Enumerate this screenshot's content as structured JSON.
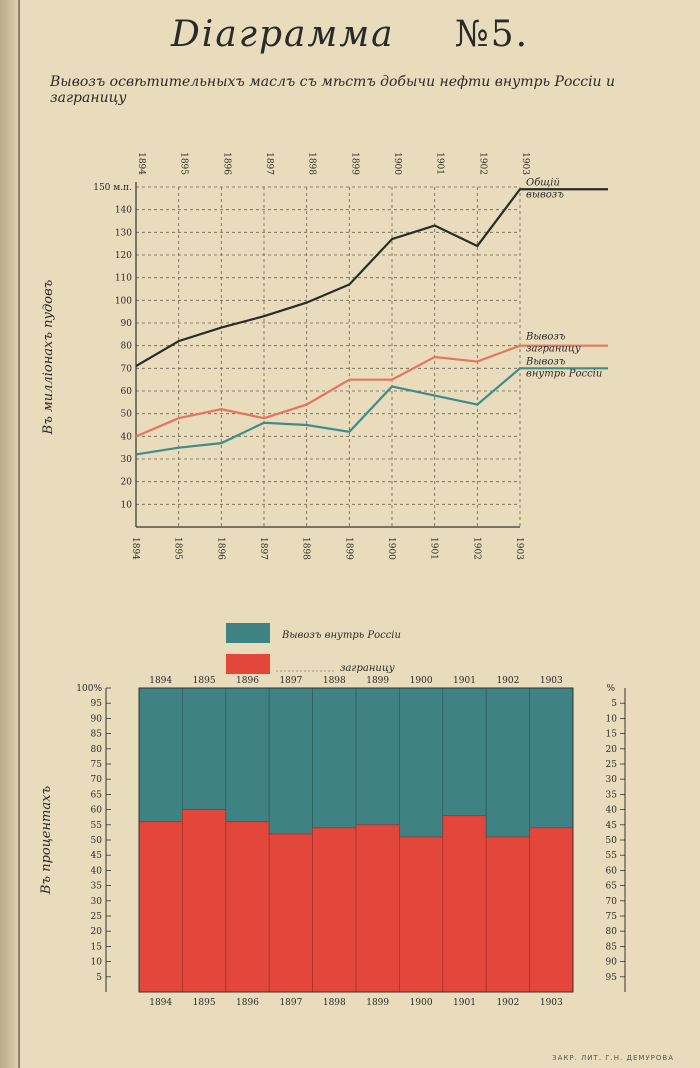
{
  "title": "Diагрaмма",
  "number": "№5.",
  "subtitle": "Вывозъ освѣтительныхъ маслъ съ мѣстъ добычи нефти внутрь Россiи и заграницу",
  "imprint": "ЗАКР. ЛИТ. Г.Н. ДЕМУРОВА",
  "colors": {
    "total": "#2b2b2b",
    "abroad": "#e8735f",
    "domestic": "#3f8c8c",
    "blue_fill": "#3f8284",
    "red_fill": "#e3463a",
    "grid": "#6b6352"
  },
  "chart_data": [
    {
      "type": "line",
      "x": [
        "1894",
        "1895",
        "1896",
        "1897",
        "1898",
        "1899",
        "1900",
        "1901",
        "1902",
        "1903"
      ],
      "ylabel": "Въ миллiонахъ пудовъ",
      "ylim": [
        0,
        150
      ],
      "yticks": [
        "10",
        "20",
        "30",
        "40",
        "50",
        "60",
        "70",
        "80",
        "90",
        "100",
        "110",
        "120",
        "130",
        "140",
        "150 м.п."
      ],
      "grid": true,
      "series": [
        {
          "name": "Общiй вывозъ",
          "label_lines": [
            "Общiй",
            "вывозъ"
          ],
          "values": [
            71,
            82,
            88,
            93,
            99,
            107,
            127,
            133,
            124,
            149
          ]
        },
        {
          "name": "Вывозъ заграницу",
          "label_lines": [
            "Вывозъ",
            "заграницу"
          ],
          "values": [
            40,
            48,
            52,
            48,
            54,
            65,
            65,
            75,
            73,
            80
          ]
        },
        {
          "name": "Вывозъ внутрь Россiи",
          "label_lines": [
            "Вывозъ",
            "внутрь Россiи"
          ],
          "values": [
            32,
            35,
            37,
            46,
            45,
            42,
            62,
            58,
            54,
            70
          ]
        }
      ]
    },
    {
      "type": "bar",
      "stacked": true,
      "percent": true,
      "categories": [
        "1894",
        "1895",
        "1896",
        "1897",
        "1898",
        "1899",
        "1900",
        "1901",
        "1902",
        "1903"
      ],
      "ylabel": "Въ процентахъ",
      "left_ticks": [
        "5",
        "10",
        "15",
        "20",
        "25",
        "30",
        "35",
        "40",
        "45",
        "50",
        "55",
        "60",
        "65",
        "70",
        "75",
        "80",
        "85",
        "90",
        "95",
        "100%"
      ],
      "right_ticks": [
        "5",
        "10",
        "15",
        "20",
        "25",
        "30",
        "35",
        "40",
        "45",
        "50",
        "55",
        "60",
        "65",
        "70",
        "75",
        "80",
        "85",
        "90",
        "95"
      ],
      "right_unit": "%",
      "legend": [
        "Вывозъ внутрь Россiи",
        "заграницу"
      ],
      "series": [
        {
          "name": "заграницу",
          "values": [
            56,
            60,
            56,
            52,
            54,
            55,
            51,
            58,
            51,
            54
          ]
        },
        {
          "name": "Вывозъ внутрь Россiи",
          "values": [
            44,
            40,
            44,
            48,
            46,
            45,
            49,
            42,
            49,
            46
          ]
        }
      ]
    }
  ]
}
